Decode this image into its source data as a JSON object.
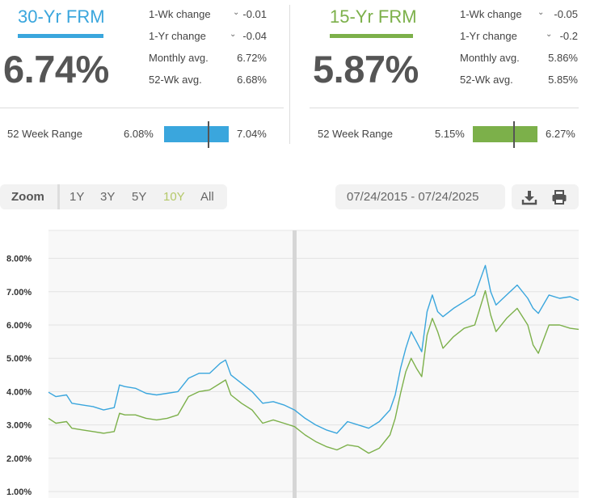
{
  "colors": {
    "frm30": "#3aa6dd",
    "frm15": "#7cb04a"
  },
  "frm30": {
    "title": "30-Yr FRM",
    "rate": "6.74%",
    "stats": [
      {
        "label": "1-Wk change",
        "value": "-0.01",
        "icon": "chevron-down-icon"
      },
      {
        "label": "1-Yr change",
        "value": "-0.04",
        "icon": "chevron-down-icon"
      },
      {
        "label": "Monthly avg.",
        "value": "6.72%"
      },
      {
        "label": "52-Wk avg.",
        "value": "6.68%"
      }
    ],
    "range": {
      "label": "52 Week Range",
      "low": "6.08%",
      "high": "7.04%",
      "current_fraction": 0.69
    }
  },
  "frm15": {
    "title": "15-Yr FRM",
    "rate": "5.87%",
    "stats": [
      {
        "label": "1-Wk change",
        "value": "-0.05",
        "icon": "chevron-down-icon"
      },
      {
        "label": "1-Yr change",
        "value": "-0.2",
        "icon": "chevron-down-icon"
      },
      {
        "label": "Monthly avg.",
        "value": "5.86%"
      },
      {
        "label": "52-Wk avg.",
        "value": "5.85%"
      }
    ],
    "range": {
      "label": "52 Week Range",
      "low": "5.15%",
      "high": "6.27%",
      "current_fraction": 0.64
    }
  },
  "zoom": {
    "label": "Zoom",
    "options": [
      "1Y",
      "3Y",
      "5Y",
      "10Y",
      "All"
    ],
    "active": "10Y",
    "active_color": "#b5c96a"
  },
  "date_range": "07/24/2015 - 07/24/2025",
  "icons": {
    "download": "download-icon",
    "print": "printer-icon"
  },
  "chart_data": {
    "type": "line",
    "x_range": [
      2015.56,
      2025.56
    ],
    "ylim": [
      1.0,
      9.0
    ],
    "yticks": [
      "1.00%",
      "2.00%",
      "3.00%",
      "4.00%",
      "5.00%",
      "6.00%",
      "7.00%",
      "8.00%"
    ],
    "grid": true,
    "series": [
      {
        "key": "frm30",
        "x": [
          2015.56,
          2015.7,
          2015.9,
          2016.0,
          2016.2,
          2016.4,
          2016.6,
          2016.8,
          2016.9,
          2017.0,
          2017.2,
          2017.4,
          2017.6,
          2017.8,
          2018.0,
          2018.2,
          2018.4,
          2018.6,
          2018.8,
          2018.9,
          2019.0,
          2019.2,
          2019.4,
          2019.6,
          2019.8,
          2020.0,
          2020.2,
          2020.4,
          2020.6,
          2020.8,
          2021.0,
          2021.2,
          2021.4,
          2021.6,
          2021.8,
          2022.0,
          2022.1,
          2022.2,
          2022.3,
          2022.4,
          2022.5,
          2022.6,
          2022.7,
          2022.8,
          2022.9,
          2023.0,
          2023.2,
          2023.4,
          2023.6,
          2023.8,
          2023.9,
          2024.0,
          2024.2,
          2024.4,
          2024.6,
          2024.7,
          2024.8,
          2025.0,
          2025.2,
          2025.4,
          2025.56
        ],
        "y": [
          3.98,
          3.85,
          3.9,
          3.65,
          3.6,
          3.55,
          3.45,
          3.52,
          4.2,
          4.15,
          4.1,
          3.95,
          3.9,
          3.95,
          4.0,
          4.4,
          4.55,
          4.55,
          4.85,
          4.95,
          4.5,
          4.25,
          4.0,
          3.65,
          3.7,
          3.6,
          3.45,
          3.2,
          3.0,
          2.85,
          2.75,
          3.1,
          3.0,
          2.9,
          3.1,
          3.45,
          3.9,
          4.7,
          5.3,
          5.8,
          5.5,
          5.2,
          6.4,
          6.9,
          6.4,
          6.25,
          6.5,
          6.7,
          6.9,
          7.79,
          7.0,
          6.6,
          6.9,
          7.2,
          6.8,
          6.5,
          6.35,
          6.9,
          6.8,
          6.85,
          6.74
        ]
      },
      {
        "key": "frm15",
        "x": [
          2015.56,
          2015.7,
          2015.9,
          2016.0,
          2016.2,
          2016.4,
          2016.6,
          2016.8,
          2016.9,
          2017.0,
          2017.2,
          2017.4,
          2017.6,
          2017.8,
          2018.0,
          2018.2,
          2018.4,
          2018.6,
          2018.8,
          2018.9,
          2019.0,
          2019.2,
          2019.4,
          2019.6,
          2019.8,
          2020.0,
          2020.2,
          2020.4,
          2020.6,
          2020.8,
          2021.0,
          2021.2,
          2021.4,
          2021.6,
          2021.8,
          2022.0,
          2022.1,
          2022.2,
          2022.3,
          2022.4,
          2022.5,
          2022.6,
          2022.7,
          2022.8,
          2022.9,
          2023.0,
          2023.2,
          2023.4,
          2023.6,
          2023.8,
          2023.9,
          2024.0,
          2024.2,
          2024.4,
          2024.6,
          2024.7,
          2024.8,
          2025.0,
          2025.2,
          2025.4,
          2025.56
        ],
        "y": [
          3.2,
          3.05,
          3.1,
          2.9,
          2.85,
          2.8,
          2.75,
          2.8,
          3.35,
          3.3,
          3.3,
          3.2,
          3.15,
          3.2,
          3.3,
          3.85,
          4.0,
          4.05,
          4.25,
          4.35,
          3.9,
          3.65,
          3.45,
          3.05,
          3.15,
          3.05,
          2.95,
          2.7,
          2.5,
          2.35,
          2.25,
          2.4,
          2.35,
          2.15,
          2.3,
          2.7,
          3.2,
          3.95,
          4.6,
          5.0,
          4.7,
          4.45,
          5.7,
          6.2,
          5.8,
          5.3,
          5.65,
          5.9,
          6.0,
          7.03,
          6.3,
          5.8,
          6.2,
          6.5,
          6.0,
          5.4,
          5.15,
          6.0,
          6.0,
          5.9,
          5.87
        ]
      }
    ]
  }
}
